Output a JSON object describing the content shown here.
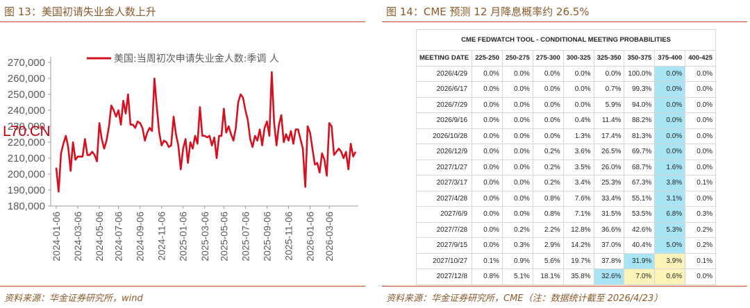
{
  "left": {
    "title": "图 13：美国初请失业金人数上升",
    "source": "资料来源：华金证券研究所，wind",
    "overlay_text": "L70.CN"
  },
  "right": {
    "title": "图 14：CME 预测 12 月降息概率约 26.5%",
    "source": "资料来源：华金证券研究所，CME（注：数据统计截至 2026/4/23）"
  },
  "chart_data": [
    {
      "type": "line",
      "title": "",
      "legend": "美国:当周初次申请失业金人数:季调 人",
      "legend_position": "top",
      "color": "#d7101f",
      "ylim": [
        180000,
        270000
      ],
      "y_ticks": [
        "270,000",
        "260,000",
        "250,000",
        "240,000",
        "230,000",
        "220,000",
        "210,000",
        "200,000",
        "190,000",
        "180,000"
      ],
      "x_ticks": [
        "2024-01-06",
        "2024-03-06",
        "2024-05-06",
        "2024-07-06",
        "2024-09-06",
        "2024-11-06",
        "2025-01-06",
        "2025-03-06",
        "2025-05-06",
        "2025-07-06",
        "2025-09-06",
        "2025-11-06",
        "2026-01-06",
        "2026-03-06"
      ],
      "grid": false,
      "values": [
        204000,
        189000,
        213000,
        219000,
        224000,
        217000,
        202000,
        220000,
        209000,
        211000,
        211000,
        211000,
        222000,
        212000,
        212000,
        214000,
        212000,
        208000,
        232000,
        222000,
        216000,
        221000,
        230000,
        243000,
        240000,
        236000,
        240000,
        231000,
        246000,
        238000,
        250000,
        231000,
        231000,
        229000,
        233000,
        232000,
        229000,
        221000,
        226000,
        229000,
        227000,
        260000,
        242000,
        226000,
        218000,
        221000,
        220000,
        217000,
        218000,
        236000,
        225000,
        218000,
        203000,
        216000,
        222000,
        207000,
        220000,
        216000,
        224000,
        219000,
        242000,
        224000,
        224000,
        223000,
        224000,
        218000,
        223000,
        210000,
        224000,
        224000,
        241000,
        226000,
        230000,
        225000,
        221000,
        229000,
        245000,
        250000,
        248000,
        240000,
        234000,
        222000,
        217000,
        224000,
        221000,
        228000,
        218000,
        229000,
        233000,
        224000,
        264000,
        232000,
        218000,
        231000,
        237000,
        220000,
        225000,
        221000,
        227000,
        219000,
        228000,
        228000,
        222000,
        216000,
        192000,
        230000,
        226000,
        216000,
        206000,
        207000,
        201000,
        213000,
        209000,
        199000,
        232000,
        230000,
        212000,
        214000,
        216000,
        214000,
        210000,
        214000,
        203000,
        219000,
        211000,
        214000
      ]
    },
    {
      "type": "table",
      "title": "CME FEDWATCH TOOL - CONDITIONAL MEETING PROBABILITIES",
      "columns": [
        "MEETING DATE",
        "225-250",
        "250-275",
        "275-300",
        "300-325",
        "325-350",
        "350-375",
        "375-400",
        "400-425"
      ],
      "rows": [
        [
          "2026/4/29",
          "0.0%",
          "0.0%",
          "0.0%",
          "0.0%",
          "0.0%",
          "100.0%",
          "0.0%",
          "0.0%"
        ],
        [
          "2026/6/17",
          "0.0%",
          "0.0%",
          "0.0%",
          "0.0%",
          "0.7%",
          "99.3%",
          "0.0%",
          "0.0%"
        ],
        [
          "2026/7/29",
          "0.0%",
          "0.0%",
          "0.0%",
          "0.0%",
          "5.9%",
          "94.0%",
          "0.0%",
          "0.0%"
        ],
        [
          "2026/9/16",
          "0.0%",
          "0.0%",
          "0.0%",
          "0.4%",
          "11.4%",
          "88.2%",
          "0.0%",
          "0.0%"
        ],
        [
          "2026/10/28",
          "0.0%",
          "0.0%",
          "0.0%",
          "1.3%",
          "17.4%",
          "81.3%",
          "0.0%",
          "0.0%"
        ],
        [
          "2026/12/9",
          "0.0%",
          "0.0%",
          "0.2%",
          "3.6%",
          "26.5%",
          "69.7%",
          "0.0%",
          "0.0%"
        ],
        [
          "2027/1/27",
          "0.0%",
          "0.0%",
          "0.2%",
          "3.5%",
          "26.0%",
          "68.7%",
          "1.6%",
          "0.0%"
        ],
        [
          "2027/3/17",
          "0.0%",
          "0.0%",
          "0.2%",
          "3.4%",
          "25.3%",
          "67.3%",
          "3.8%",
          "0.1%"
        ],
        [
          "2027/4/28",
          "0.0%",
          "0.0%",
          "0.8%",
          "7.6%",
          "33.4%",
          "55.1%",
          "3.1%",
          "0.0%"
        ],
        [
          "2027/6/9",
          "0.0%",
          "0.0%",
          "0.8%",
          "7.1%",
          "31.5%",
          "53.5%",
          "6.8%",
          "0.3%"
        ],
        [
          "2027/7/28",
          "0.0%",
          "0.2%",
          "2.2%",
          "12.8%",
          "36.6%",
          "42.6%",
          "5.3%",
          "0.2%"
        ],
        [
          "2027/9/15",
          "0.0%",
          "0.3%",
          "2.9%",
          "14.2%",
          "37.0%",
          "40.4%",
          "5.0%",
          "0.2%"
        ],
        [
          "2027/10/27",
          "0.1%",
          "0.9%",
          "5.6%",
          "19.7%",
          "37.8%",
          "31.9%",
          "3.9%",
          "0.1%"
        ],
        [
          "2027/12/8",
          "0.8%",
          "5.1%",
          "18.1%",
          "35.8%",
          "32.6%",
          "7.0%",
          "0.6%",
          "0.0%"
        ]
      ],
      "highlights": {
        "blue": [
          [
            0,
            6
          ],
          [
            1,
            6
          ],
          [
            2,
            6
          ],
          [
            3,
            6
          ],
          [
            4,
            6
          ],
          [
            5,
            6
          ],
          [
            6,
            6
          ],
          [
            7,
            6
          ],
          [
            8,
            6
          ],
          [
            9,
            6
          ],
          [
            10,
            6
          ],
          [
            11,
            6
          ],
          [
            12,
            5
          ],
          [
            13,
            4
          ]
        ],
        "yellow": [
          [
            12,
            6
          ],
          [
            13,
            5
          ],
          [
            13,
            6
          ]
        ]
      },
      "colors": {
        "blue": "#a8e4f4",
        "yellow": "#fbf3b8"
      }
    }
  ]
}
